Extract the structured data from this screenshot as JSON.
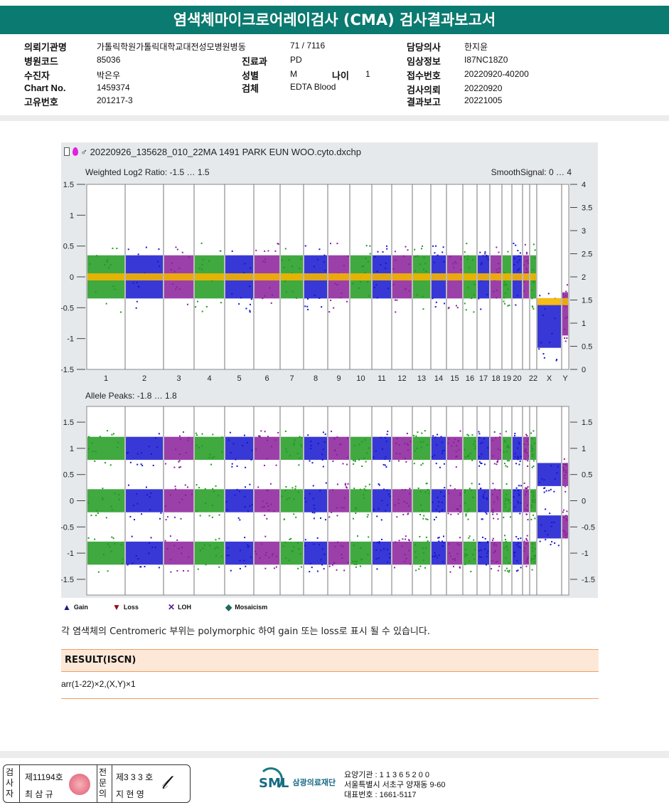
{
  "header": {
    "title": "염색체마이크로어레이검사 (CMA) 검사결과보고서"
  },
  "patient": {
    "institution_label": "의뢰기관명",
    "institution": "가톨릭학원가톨릭대학교대전성모병원병동",
    "ward": "71 / 7116",
    "doctor_label": "담당의사",
    "doctor": "한지윤",
    "hospital_code_label": "병원코드",
    "hospital_code": "85036",
    "dept_label": "진료과",
    "dept": "PD",
    "clinical_label": "임상정보",
    "clinical": "I87NC18Z0",
    "name_label": "수진자",
    "name": "박은우",
    "sex_label": "성별",
    "sex": "M",
    "age_label": "나이",
    "age": "1",
    "receipt_label": "접수번호",
    "receipt": "20220920-40200",
    "chart_label": "Chart No.",
    "chart": "1459374",
    "specimen_label": "검체",
    "specimen": "EDTA Blood",
    "request_label": "검사의뢰",
    "request": "20220920",
    "unique_label": "고유번호",
    "unique": "201217-3",
    "report_label": "결과보고",
    "report": "20221005"
  },
  "figure": {
    "file": "20220926_135628_010_22MA 1491 PARK EUN WOO.cyto.dxchp",
    "sex_symbol": "♂"
  },
  "chart_data": [
    {
      "type": "scatter",
      "title": "Weighted Log2 Ratio: -1.5 … 1.5",
      "right_title": "SmoothSignal: 0 … 4",
      "ylim": [
        -1.5,
        1.5
      ],
      "yticks": [
        1.5,
        1,
        0.5,
        0,
        -0.5,
        -1,
        -1.5
      ],
      "right_ylim": [
        0,
        4
      ],
      "right_yticks": [
        4,
        3.5,
        3,
        2.5,
        2,
        1.5,
        1,
        0.5,
        0
      ],
      "chromosomes": [
        "1",
        "2",
        "3",
        "4",
        "5",
        "6",
        "7",
        "8",
        "9",
        "10",
        "11",
        "12",
        "13",
        "14",
        "15",
        "16",
        "17",
        "18",
        "19",
        "20",
        "21",
        "22",
        "X",
        "Y"
      ],
      "log2_center": [
        0,
        0,
        0,
        0,
        0,
        0,
        0,
        0,
        0,
        0,
        0,
        0,
        0,
        0,
        0,
        0,
        0,
        0,
        0,
        0,
        0,
        0,
        -0.8,
        -0.6
      ],
      "smooth_signal": [
        2,
        2,
        2,
        2,
        2,
        2,
        2,
        2,
        2,
        2,
        2,
        2,
        2,
        2,
        2,
        2,
        2,
        2,
        2,
        2,
        2,
        2,
        1,
        1
      ]
    },
    {
      "type": "scatter",
      "title": "Allele Peaks: -1.8 … 1.8",
      "ylim": [
        -1.8,
        1.8
      ],
      "yticks": [
        1.5,
        1,
        0.5,
        0,
        -0.5,
        -1,
        -1.5
      ],
      "peaks_autosome": [
        1,
        0,
        -1
      ],
      "peaks_X": [
        0.5,
        -0.5
      ]
    }
  ],
  "chrom_colors": [
    "#1e9a1e",
    "#1515d0",
    "#8a1e9a"
  ],
  "smooth_color": "#f5b400",
  "legend": [
    {
      "label": "Gain"
    },
    {
      "label": "Loss"
    },
    {
      "label": "LOH"
    },
    {
      "label": "Mosaicism"
    }
  ],
  "note": "각 염색체의 Centromeric 부위는 polymorphic 하여 gain 또는 loss로 표시 될 수 있습니다.",
  "result": {
    "title": "RESULT(ISCN)",
    "value": "arr(1-22)×2,(X,Y)×1"
  },
  "footer": {
    "tester_label": "검사자",
    "tester_no": "제11194호",
    "tester_name": "최 삼 규",
    "spec_label": "전문의",
    "spec_no": "제3 3 3 호",
    "spec_name": "지 현 영",
    "logo": "SML",
    "org_name": "삼광의료재단",
    "code": "요양기관 : 1 1 3 6 5 2 0 0",
    "address": "서울특별시 서초구 양재동 9-60",
    "phone": "대표번호 : 1661-5117"
  }
}
